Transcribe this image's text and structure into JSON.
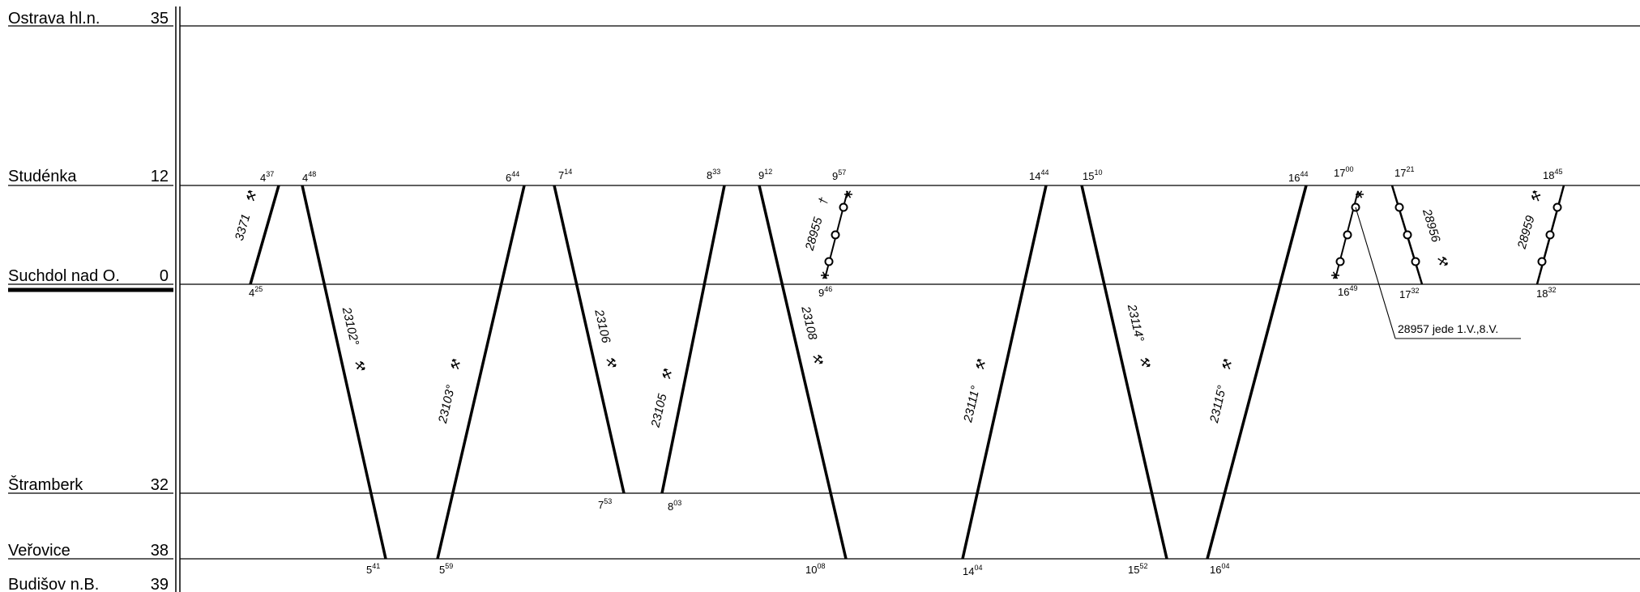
{
  "stations": [
    {
      "name": "Ostrava hl.n.",
      "km": "35"
    },
    {
      "name": "Studénka",
      "km": "12"
    },
    {
      "name": "Suchdol nad O.",
      "km": "0"
    },
    {
      "name": "Štramberk",
      "km": "32"
    },
    {
      "name": "Veřovice",
      "km": "38"
    },
    {
      "name": "Budišov n.B.",
      "km": "39"
    }
  ],
  "trains": [
    {
      "number": "3371",
      "symbol": "⚒"
    },
    {
      "number": "23102°",
      "symbol": "⚒"
    },
    {
      "number": "23103°",
      "symbol": "⚒"
    },
    {
      "number": "23106",
      "symbol": "⚒"
    },
    {
      "number": "23105",
      "symbol": "⚒"
    },
    {
      "number": "23108",
      "symbol": "⚒"
    },
    {
      "number": "28955",
      "symbol": "†"
    },
    {
      "number": "23111°",
      "symbol": "⚒"
    },
    {
      "number": "23114°",
      "symbol": "⚒"
    },
    {
      "number": "23115°",
      "symbol": "⚒"
    },
    {
      "number": "28956",
      "symbol": "⚒"
    },
    {
      "number": "28959",
      "symbol": "⚒"
    }
  ],
  "times": [
    {
      "h": "4",
      "m": "37"
    },
    {
      "h": "4",
      "m": "25"
    },
    {
      "h": "4",
      "m": "48"
    },
    {
      "h": "5",
      "m": "41"
    },
    {
      "h": "5",
      "m": "59"
    },
    {
      "h": "6",
      "m": "44"
    },
    {
      "h": "7",
      "m": "14"
    },
    {
      "h": "7",
      "m": "53"
    },
    {
      "h": "8",
      "m": "03"
    },
    {
      "h": "8",
      "m": "33"
    },
    {
      "h": "9",
      "m": "12"
    },
    {
      "h": "10",
      "m": "08"
    },
    {
      "h": "9",
      "m": "46"
    },
    {
      "h": "9",
      "m": "57"
    },
    {
      "h": "14",
      "m": "04"
    },
    {
      "h": "14",
      "m": "44"
    },
    {
      "h": "15",
      "m": "10"
    },
    {
      "h": "15",
      "m": "52"
    },
    {
      "h": "16",
      "m": "04"
    },
    {
      "h": "16",
      "m": "44"
    },
    {
      "h": "16",
      "m": "49"
    },
    {
      "h": "17",
      "m": "00"
    },
    {
      "h": "17",
      "m": "21"
    },
    {
      "h": "17",
      "m": "32"
    },
    {
      "h": "18",
      "m": "32"
    },
    {
      "h": "18",
      "m": "45"
    }
  ],
  "note": {
    "text": "28957  jede  1.V.,8.V."
  }
}
